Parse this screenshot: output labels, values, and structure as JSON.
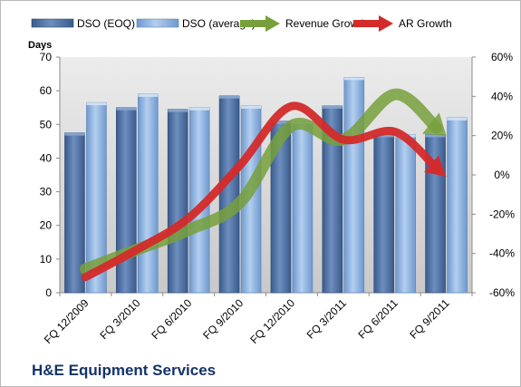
{
  "chart_data": {
    "type": "bar",
    "title": "H&E Equipment Services",
    "ylabel": "Days",
    "ylim": [
      0,
      70
    ],
    "y2lim": [
      -60,
      60
    ],
    "yticks": [
      0,
      10,
      20,
      30,
      40,
      50,
      60,
      70
    ],
    "y2ticks": [
      "-60%",
      "-40%",
      "-20%",
      "0%",
      "20%",
      "40%",
      "60%"
    ],
    "categories": [
      "FQ 12/2009",
      "FQ 3/2010",
      "FQ 6/2010",
      "FQ 9/2010",
      "FQ 12/2010",
      "FQ 3/2011",
      "FQ 6/2011",
      "FQ 9/2011"
    ],
    "legend_position": "top",
    "grid": false,
    "series": [
      {
        "name": "DSO (EOQ)",
        "kind": "bar",
        "axis": "left",
        "color": "#4a6fa3",
        "values": [
          47.5,
          55,
          54.5,
          58.5,
          51,
          55.5,
          47,
          47
        ]
      },
      {
        "name": "DSO (average)",
        "kind": "bar",
        "axis": "left",
        "color": "#8db3e2",
        "values": [
          56.5,
          59,
          55,
          55.5,
          51,
          64,
          47,
          52
        ]
      },
      {
        "name": "Revenue Growth",
        "kind": "arrow-line",
        "axis": "right",
        "unit": "%",
        "color": "#77a03c",
        "values": [
          -48,
          -38,
          -28,
          -14,
          25,
          18,
          41,
          20
        ]
      },
      {
        "name": "AR Growth",
        "kind": "arrow-line",
        "axis": "right",
        "unit": "%",
        "color": "#d42a2a",
        "values": [
          -52,
          -38,
          -22,
          5,
          35,
          18,
          22,
          -1
        ]
      }
    ]
  }
}
